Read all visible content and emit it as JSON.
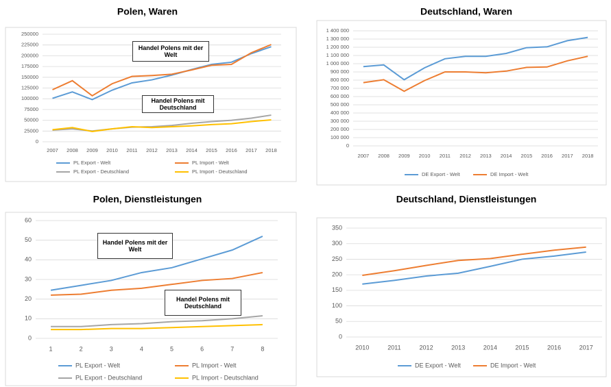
{
  "chart_data": [
    {
      "type": "line",
      "title": "Polen, Waren",
      "categories": [
        "2007",
        "2008",
        "2009",
        "2010",
        "2011",
        "2012",
        "2013",
        "2014",
        "2015",
        "2016",
        "2017",
        "2018"
      ],
      "series": [
        {
          "name": "PL Export - Welt",
          "color": "#5b9bd5",
          "values": [
            101000,
            116000,
            98000,
            120000,
            137000,
            144000,
            155000,
            168000,
            180000,
            185000,
            205000,
            221000
          ]
        },
        {
          "name": "PL Import - Welt",
          "color": "#ed7d31",
          "values": [
            121000,
            142000,
            107000,
            135000,
            152000,
            154000,
            157000,
            167000,
            178000,
            180000,
            207000,
            226000
          ]
        },
        {
          "name": "PL Export - Deutschland",
          "color": "#a5a5a5",
          "values": [
            27000,
            30000,
            25000,
            30000,
            34000,
            35000,
            38000,
            43000,
            47000,
            50000,
            55000,
            62000
          ]
        },
        {
          "name": "PL Import - Deutschland",
          "color": "#ffc000",
          "values": [
            28000,
            33000,
            24000,
            30000,
            35000,
            33000,
            35000,
            37000,
            40000,
            42000,
            47000,
            51000
          ]
        }
      ],
      "ylim": [
        0,
        250000
      ],
      "yticks": [
        0,
        25000,
        50000,
        75000,
        100000,
        125000,
        150000,
        175000,
        200000,
        225000,
        250000
      ],
      "grid": true,
      "legend": "bottom",
      "annotations": [
        "Handel Polens mit der Welt",
        "Handel Polens mit Deutschland"
      ]
    },
    {
      "type": "line",
      "title": "Deutschland, Waren",
      "categories": [
        "2007",
        "2008",
        "2009",
        "2010",
        "2011",
        "2012",
        "2013",
        "2014",
        "2015",
        "2016",
        "2017",
        "2018"
      ],
      "series": [
        {
          "name": "DE Export - Welt",
          "color": "#5b9bd5",
          "values": [
            965000,
            985000,
            805000,
            950000,
            1060000,
            1090000,
            1090000,
            1125000,
            1195000,
            1205000,
            1280000,
            1320000
          ]
        },
        {
          "name": "DE Import - Welt",
          "color": "#ed7d31",
          "values": [
            770000,
            805000,
            665000,
            795000,
            900000,
            900000,
            890000,
            910000,
            955000,
            960000,
            1035000,
            1090000
          ]
        }
      ],
      "ylim": [
        0,
        1400000
      ],
      "yticks": [
        0,
        {
          "value": 100000,
          "label": "100 000"
        },
        {
          "value": 200000,
          "label": "200 000"
        },
        {
          "value": 300000,
          "label": "300 000"
        },
        {
          "value": 400000,
          "label": "400 000"
        },
        {
          "value": 500000,
          "label": "500 000"
        },
        {
          "value": 600000,
          "label": "600 000"
        },
        {
          "value": 700000,
          "label": "700 000"
        },
        {
          "value": 800000,
          "label": "800 000"
        },
        {
          "value": 900000,
          "label": "900 000"
        },
        {
          "value": 1000000,
          "label": "1 000 000"
        },
        {
          "value": 1100000,
          "label": "1 100 000"
        },
        {
          "value": 1200000,
          "label": "1 200 000"
        },
        {
          "value": 1300000,
          "label": "1 300 000"
        },
        {
          "value": 1400000,
          "label": "1 400 000"
        }
      ],
      "grid": true,
      "legend": "bottom"
    },
    {
      "type": "line",
      "title": "Polen, Dienstleistungen",
      "categories": [
        "1",
        "2",
        "3",
        "4",
        "5",
        "6",
        "7",
        "8"
      ],
      "series": [
        {
          "name": "PL Export - Welt",
          "color": "#5b9bd5",
          "values": [
            24.5,
            27,
            29.5,
            33.5,
            36,
            40.5,
            45,
            52
          ]
        },
        {
          "name": "PL Import - Welt",
          "color": "#ed7d31",
          "values": [
            22,
            22.5,
            24.5,
            25.5,
            27.5,
            29.5,
            30.5,
            33.5
          ]
        },
        {
          "name": "PL Export - Deutschland",
          "color": "#a5a5a5",
          "values": [
            6,
            6,
            7,
            7.5,
            8.5,
            9,
            10,
            11.5
          ]
        },
        {
          "name": "PL Import - Deutschland",
          "color": "#ffc000",
          "values": [
            4.5,
            4.5,
            5,
            5,
            5.5,
            6,
            6.5,
            7
          ]
        }
      ],
      "ylim": [
        0,
        60
      ],
      "yticks": [
        0,
        10,
        20,
        30,
        40,
        50,
        60
      ],
      "grid": true,
      "legend": "bottom",
      "annotations": [
        "Handel Polens mit der Welt",
        "Handel Polens mit Deutschland"
      ]
    },
    {
      "type": "line",
      "title": "Deutschland, Dienstleistungen",
      "categories": [
        "2010",
        "2011",
        "2012",
        "2013",
        "2014",
        "2015",
        "2016",
        "2017"
      ],
      "series": [
        {
          "name": "DE Export - Welt",
          "color": "#5b9bd5",
          "values": [
            170,
            182,
            196,
            205,
            227,
            250,
            260,
            273
          ]
        },
        {
          "name": "DE Import - Welt",
          "color": "#ed7d31",
          "values": [
            198,
            213,
            230,
            246,
            252,
            266,
            279,
            289
          ]
        }
      ],
      "ylim": [
        0,
        350
      ],
      "yticks": [
        0,
        50,
        100,
        150,
        200,
        250,
        300,
        350
      ],
      "grid": true,
      "legend": "bottom"
    }
  ]
}
